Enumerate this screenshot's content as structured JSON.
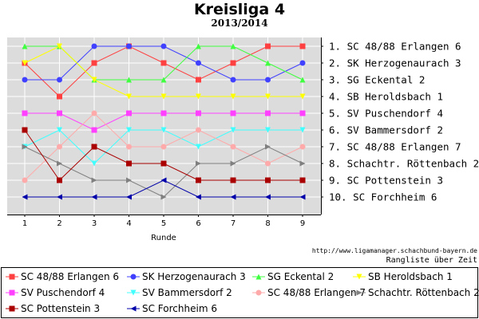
{
  "title": "Kreisliga 4",
  "subtitle": "2013/2014",
  "source": "http://www.ligamanager.schachbund-bayern.de",
  "caption": "Rangliste über Zeit",
  "chart_data": {
    "type": "line",
    "xlabel": "Runde",
    "x": [
      1,
      2,
      3,
      4,
      5,
      6,
      7,
      8,
      9
    ],
    "ylim": [
      1,
      10
    ],
    "y_inverted": true,
    "grid": true,
    "legend_position": "bottom",
    "rank_labels": [
      "1. SC 48/88 Erlangen 6",
      "2. SK Herzogenaurach 3",
      "3. SG Eckental 2",
      "4. SB Heroldsbach 1",
      "5. SV Puschendorf 4",
      "6. SV Bammersdorf 2",
      "7. SC 48/88 Erlangen 7",
      "8. Schachtr. Röttenbach 2",
      "9. SC Pottenstein 3",
      "10. SC Forchheim 6"
    ],
    "series": [
      {
        "name": "SC 48/88 Erlangen 6",
        "color": "#ff4040",
        "marker": "square",
        "values": [
          2,
          4,
          2,
          1,
          2,
          3,
          2,
          1,
          1
        ]
      },
      {
        "name": "SK Herzogenaurach 3",
        "color": "#4040ff",
        "marker": "circle",
        "values": [
          3,
          3,
          1,
          1,
          1,
          2,
          3,
          3,
          2
        ]
      },
      {
        "name": "SG Eckental 2",
        "color": "#40ff40",
        "marker": "triangle-up",
        "values": [
          1,
          1,
          3,
          3,
          3,
          1,
          1,
          2,
          3
        ]
      },
      {
        "name": "SB Heroldsbach 1",
        "color": "#ffff00",
        "marker": "triangle-down",
        "values": [
          2,
          1,
          3,
          4,
          4,
          4,
          4,
          4,
          4
        ]
      },
      {
        "name": "SV Puschendorf 4",
        "color": "#ff40ff",
        "marker": "square",
        "values": [
          5,
          5,
          6,
          5,
          5,
          5,
          5,
          5,
          5
        ]
      },
      {
        "name": "SV Bammersdorf 2",
        "color": "#40ffff",
        "marker": "triangle-down",
        "values": [
          7,
          6,
          8,
          6,
          6,
          7,
          6,
          6,
          6
        ]
      },
      {
        "name": "SC 48/88 Erlangen 7",
        "color": "#ffaaaa",
        "marker": "circle",
        "values": [
          9,
          7,
          5,
          7,
          7,
          6,
          7,
          8,
          7
        ]
      },
      {
        "name": "Schachtr. Röttenbach 2",
        "color": "#808080",
        "marker": "triangle-right",
        "values": [
          7,
          8,
          9,
          9,
          10,
          8,
          8,
          7,
          8
        ]
      },
      {
        "name": "SC Pottenstein 3",
        "color": "#aa0000",
        "marker": "square",
        "values": [
          6,
          9,
          7,
          8,
          8,
          9,
          9,
          9,
          9
        ]
      },
      {
        "name": "SC Forchheim 6",
        "color": "#0000aa",
        "marker": "triangle-left",
        "values": [
          10,
          10,
          10,
          10,
          9,
          10,
          10,
          10,
          10
        ]
      }
    ]
  }
}
